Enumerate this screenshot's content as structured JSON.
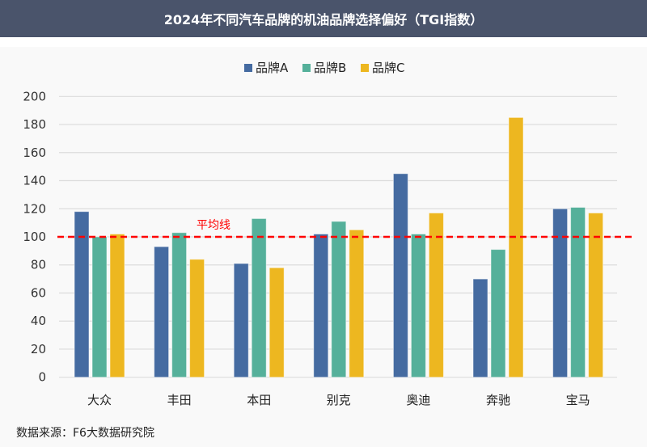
{
  "header": {
    "title": "2024年不同汽车品牌的机油品牌选择偏好（TGI指数）"
  },
  "source": "数据来源：F6大数据研究院",
  "watermark": "F6大数据研究院",
  "chart_data": {
    "type": "bar",
    "title": "2024年不同汽车品牌的机油品牌选择偏好（TGI指数）",
    "categories": [
      "大众",
      "丰田",
      "本田",
      "别克",
      "奥迪",
      "奔驰",
      "宝马"
    ],
    "series": [
      {
        "name": "品牌A",
        "color": "#456ba1",
        "values": [
          118,
          93,
          81,
          102,
          145,
          70,
          120
        ]
      },
      {
        "name": "品牌B",
        "color": "#55b09a",
        "values": [
          100,
          103,
          113,
          111,
          102,
          91,
          121
        ]
      },
      {
        "name": "品牌C",
        "color": "#edb720",
        "values": [
          102,
          84,
          78,
          105,
          117,
          185,
          117
        ]
      }
    ],
    "ylim": [
      0,
      200
    ],
    "yticks": [
      0,
      20,
      40,
      60,
      80,
      100,
      120,
      140,
      160,
      180,
      200
    ],
    "reference_line": {
      "label": "平均线",
      "value": 100,
      "color": "#ff0000"
    },
    "legend": "top-center",
    "grid": true
  }
}
